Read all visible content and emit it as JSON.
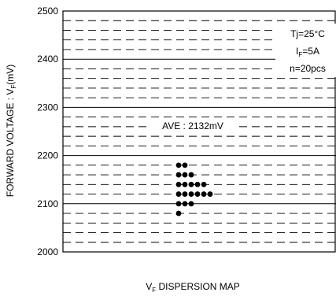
{
  "chart_data": {
    "type": "scatter",
    "title": "",
    "xlabel_main": "V",
    "xlabel_sub": "F",
    "xlabel_rest": " DISPERSION MAP",
    "ylabel_main": "FORWARD VOLTAGE : V",
    "ylabel_sub": "F",
    "ylabel_rest": "(mV)",
    "ylim": [
      2000,
      2500
    ],
    "yticks": [
      "2000",
      "2100",
      "2200",
      "2300",
      "2400",
      "2500"
    ],
    "ytick_values": [
      2000,
      2100,
      2200,
      2300,
      2400,
      2500
    ],
    "major_grid_step": 100,
    "minor_grid_step": 20,
    "grid": true,
    "points_mv": [
      2080,
      2100,
      2100,
      2100,
      2120,
      2120,
      2120,
      2120,
      2120,
      2120,
      2140,
      2140,
      2140,
      2140,
      2140,
      2160,
      2160,
      2160,
      2180,
      2180
    ],
    "point_color": "#000000",
    "annotations": {
      "condition_tj": "Tj=25°C",
      "condition_if_main": "I",
      "condition_if_sub": "F",
      "condition_if_rest": "=5A",
      "condition_n": "n=20pcs",
      "average": "AVE : 2132mV"
    },
    "annotation_placement": "top-right"
  }
}
